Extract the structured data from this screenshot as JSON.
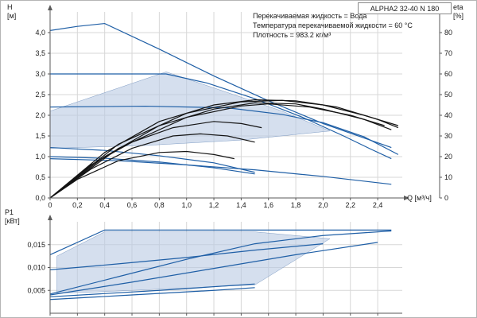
{
  "figure": {
    "kind": "pump-performance-curves"
  },
  "colors": {
    "curve_blue": "#1f5fa6",
    "curve_black": "#141414",
    "area_fill": "#b9c9e2",
    "area_edge": "#7f9cc4",
    "grid": "#d7d7d7",
    "axis": "#5a5a5a"
  },
  "axes": {
    "h": {
      "name": "H",
      "unit": "[м]"
    },
    "eta": {
      "name": "eta",
      "unit": "[%]"
    },
    "q": {
      "label": "Q [м³/ч]"
    },
    "p1": {
      "name": "P1",
      "unit": "[кВт]"
    }
  },
  "annotations": [
    "Перекачиваемая жидкость = Вода",
    "Температура перекачиваемой жидкости = 60 °C",
    "Плотность = 983.2 кг/м³"
  ],
  "chart_data": [
    {
      "type": "line",
      "title": "ALPHA2 32-40 N 180",
      "xlabel": "Q [м³/ч]",
      "ylabel": "H [м]",
      "y2label": "eta [%]",
      "xlim": [
        0,
        2.58
      ],
      "ylim": [
        0,
        4.5
      ],
      "y2lim": [
        0,
        90
      ],
      "grid": true,
      "legend": "none",
      "x_ticks": [
        0,
        0.2,
        0.4,
        0.6,
        0.8,
        1.0,
        1.2,
        1.4,
        1.6,
        1.8,
        2.0,
        2.2,
        2.4
      ],
      "x_tick_labels": [
        "0",
        "0,2",
        "0,4",
        "0,6",
        "0,8",
        "1,0",
        "1,2",
        "1,4",
        "1,6",
        "1,8",
        "2,0",
        "2,2",
        "2,4"
      ],
      "y_ticks": [
        0,
        0.5,
        1.0,
        1.5,
        2.0,
        2.5,
        3.0,
        3.5,
        4.0
      ],
      "y_tick_labels": [
        "0,0",
        "0,5",
        "1,0",
        "1,5",
        "2,0",
        "2,5",
        "3,0",
        "3,5",
        "4,0"
      ],
      "y2_ticks": [
        0,
        10,
        20,
        30,
        40,
        50,
        60,
        70,
        80
      ],
      "y2_tick_labels": [
        "0",
        "10",
        "20",
        "30",
        "40",
        "50",
        "60",
        "70",
        "80"
      ],
      "operating_area": [
        [
          0,
          1.2
        ],
        [
          0,
          2.1
        ],
        [
          0.85,
          3.05
        ],
        [
          1.3,
          2.55
        ],
        [
          1.7,
          2.1
        ],
        [
          2.05,
          1.62
        ],
        [
          1.4,
          1.4
        ],
        [
          0.7,
          1.27
        ]
      ],
      "series": [
        {
          "name": "pump-curve-max",
          "axis": "y",
          "color": "#1f5fa6",
          "points": [
            [
              0,
              4.05
            ],
            [
              0.2,
              4.15
            ],
            [
              0.4,
              4.22
            ],
            [
              0.8,
              3.6
            ],
            [
              1.2,
              2.95
            ],
            [
              1.6,
              2.35
            ],
            [
              2.0,
              1.8
            ],
            [
              2.3,
              1.45
            ],
            [
              2.5,
              1.22
            ]
          ]
        },
        {
          "name": "pump-curve-cp3",
          "axis": "y",
          "color": "#1f5fa6",
          "points": [
            [
              0,
              3.0
            ],
            [
              0.85,
              3.0
            ],
            [
              1.15,
              2.78
            ],
            [
              1.5,
              2.4
            ],
            [
              1.85,
              1.95
            ],
            [
              2.15,
              1.5
            ],
            [
              2.35,
              1.18
            ],
            [
              2.5,
              0.95
            ]
          ]
        },
        {
          "name": "pump-curve-cp2",
          "axis": "y",
          "color": "#1f5fa6",
          "points": [
            [
              0,
              2.2
            ],
            [
              0.7,
              2.22
            ],
            [
              1.3,
              2.18
            ],
            [
              1.7,
              2.02
            ],
            [
              2.0,
              1.82
            ],
            [
              2.3,
              1.48
            ],
            [
              2.55,
              1.05
            ]
          ]
        },
        {
          "name": "pump-curve-min",
          "axis": "y",
          "color": "#1f5fa6",
          "points": [
            [
              0,
              1.22
            ],
            [
              0.4,
              1.15
            ],
            [
              0.8,
              1.02
            ],
            [
              1.2,
              0.85
            ],
            [
              1.5,
              0.62
            ]
          ]
        },
        {
          "name": "pump-curve-min-2",
          "axis": "y",
          "color": "#1f5fa6",
          "points": [
            [
              0,
              1.0
            ],
            [
              0.4,
              0.96
            ],
            [
              0.8,
              0.87
            ],
            [
              1.2,
              0.73
            ],
            [
              1.5,
              0.58
            ]
          ]
        },
        {
          "name": "pump-curve-low",
          "axis": "y",
          "color": "#1f5fa6",
          "points": [
            [
              0,
              0.95
            ],
            [
              0.5,
              0.9
            ],
            [
              1.0,
              0.8
            ],
            [
              1.5,
              0.68
            ],
            [
              2.0,
              0.52
            ],
            [
              2.5,
              0.33
            ]
          ]
        },
        {
          "name": "eta-curve-1",
          "axis": "y2",
          "color": "#141414",
          "points": [
            [
              0,
              0
            ],
            [
              0.4,
              22
            ],
            [
              0.8,
              37
            ],
            [
              1.2,
              45
            ],
            [
              1.5,
              47.5
            ],
            [
              1.8,
              47
            ],
            [
              2.1,
              44
            ],
            [
              2.4,
              38
            ],
            [
              2.55,
              34
            ]
          ]
        },
        {
          "name": "eta-curve-2",
          "axis": "y2",
          "color": "#141414",
          "points": [
            [
              0,
              0
            ],
            [
              0.4,
              20
            ],
            [
              0.8,
              35
            ],
            [
              1.2,
              43
            ],
            [
              1.5,
              46
            ],
            [
              1.8,
              45.5
            ],
            [
              2.0,
              43
            ],
            [
              2.3,
              38
            ],
            [
              2.5,
              33
            ]
          ]
        },
        {
          "name": "eta-curve-3",
          "axis": "y2",
          "color": "#141414",
          "points": [
            [
              0,
              0
            ],
            [
              0.5,
              26
            ],
            [
              1.0,
              41
            ],
            [
              1.4,
              46.5
            ],
            [
              1.7,
              47.2
            ],
            [
              2.0,
              45
            ],
            [
              2.3,
              40
            ],
            [
              2.55,
              35
            ]
          ]
        },
        {
          "name": "eta-curve-4",
          "axis": "y2",
          "color": "#141414",
          "points": [
            [
              0,
              0
            ],
            [
              0.5,
              24
            ],
            [
              1.0,
              39
            ],
            [
              1.4,
              44.5
            ],
            [
              1.6,
              45.5
            ],
            [
              1.9,
              44
            ],
            [
              2.2,
              40
            ],
            [
              2.45,
              35
            ]
          ]
        },
        {
          "name": "eta-curve-5",
          "axis": "y2",
          "color": "#141414",
          "points": [
            [
              0,
              0
            ],
            [
              0.3,
              16
            ],
            [
              0.6,
              27
            ],
            [
              0.9,
              34
            ],
            [
              1.2,
              37
            ],
            [
              1.4,
              36
            ],
            [
              1.55,
              34
            ]
          ]
        },
        {
          "name": "eta-curve-6",
          "axis": "y2",
          "color": "#141414",
          "points": [
            [
              0,
              0
            ],
            [
              0.3,
              14
            ],
            [
              0.6,
              24
            ],
            [
              0.9,
              30
            ],
            [
              1.1,
              31
            ],
            [
              1.3,
              30
            ],
            [
              1.5,
              27
            ]
          ]
        },
        {
          "name": "eta-curve-7",
          "axis": "y2",
          "color": "#141414",
          "points": [
            [
              0,
              0
            ],
            [
              0.2,
              9
            ],
            [
              0.5,
              18
            ],
            [
              0.8,
              22
            ],
            [
              1.0,
              22.5
            ],
            [
              1.2,
              21
            ],
            [
              1.35,
              19
            ]
          ]
        }
      ]
    },
    {
      "type": "line",
      "title": "",
      "xlabel": "Q [м³/ч]",
      "ylabel": "P1 [кВт]",
      "xlim": [
        0,
        2.58
      ],
      "ylim": [
        0,
        0.02
      ],
      "grid": true,
      "x_ticks": [
        0,
        0.2,
        0.4,
        0.6,
        0.8,
        1.0,
        1.2,
        1.4,
        1.6,
        1.8,
        2.0,
        2.2,
        2.4
      ],
      "y_ticks": [
        0.005,
        0.01,
        0.015
      ],
      "y_tick_labels": [
        "0,005",
        "0,010",
        "0,015"
      ],
      "operating_area": [
        [
          0.05,
          0.0125
        ],
        [
          0.4,
          0.0178
        ],
        [
          1.5,
          0.0178
        ],
        [
          2.05,
          0.0163
        ],
        [
          1.5,
          0.0062
        ],
        [
          0.3,
          0.0046
        ],
        [
          0.05,
          0.0044
        ]
      ],
      "series": [
        {
          "name": "power-curve-max",
          "color": "#1f5fa6",
          "points": [
            [
              0,
              0.0128
            ],
            [
              0.4,
              0.0182
            ],
            [
              1.0,
              0.0182
            ],
            [
              1.8,
              0.0182
            ],
            [
              2.5,
              0.0182
            ]
          ]
        },
        {
          "name": "power-curve-1",
          "color": "#1f5fa6",
          "points": [
            [
              0,
              0.0042
            ],
            [
              0.5,
              0.008
            ],
            [
              1.0,
              0.0118
            ],
            [
              1.5,
              0.0152
            ],
            [
              2.0,
              0.017
            ],
            [
              2.5,
              0.018
            ]
          ]
        },
        {
          "name": "power-curve-2",
          "color": "#1f5fa6",
          "points": [
            [
              0,
              0.004
            ],
            [
              0.6,
              0.0068
            ],
            [
              1.2,
              0.0098
            ],
            [
              1.8,
              0.0128
            ],
            [
              2.4,
              0.0155
            ]
          ]
        },
        {
          "name": "power-curve-3",
          "color": "#1f5fa6",
          "points": [
            [
              0,
              0.0095
            ],
            [
              0.5,
              0.0108
            ],
            [
              1.0,
              0.0122
            ],
            [
              1.5,
              0.0138
            ],
            [
              2.0,
              0.0152
            ]
          ]
        },
        {
          "name": "power-curve-min",
          "color": "#1f5fa6",
          "points": [
            [
              0,
              0.0036
            ],
            [
              0.8,
              0.005
            ],
            [
              1.5,
              0.0064
            ]
          ]
        },
        {
          "name": "power-curve-min-2",
          "color": "#1f5fa6",
          "points": [
            [
              0,
              0.003
            ],
            [
              0.6,
              0.004
            ],
            [
              1.2,
              0.005
            ],
            [
              1.5,
              0.0056
            ]
          ]
        }
      ]
    }
  ]
}
